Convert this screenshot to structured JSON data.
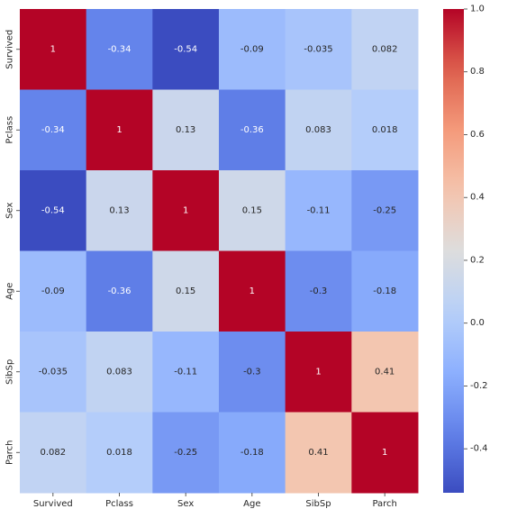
{
  "chart_data": {
    "type": "heatmap",
    "title": "",
    "xlabel": "",
    "ylabel": "",
    "x_labels": [
      "Survived",
      "Pclass",
      "Sex",
      "Age",
      "SibSp",
      "Parch"
    ],
    "y_labels": [
      "Survived",
      "Pclass",
      "Sex",
      "Age",
      "SibSp",
      "Parch"
    ],
    "values": [
      [
        1,
        -0.34,
        -0.54,
        -0.09,
        -0.035,
        0.082
      ],
      [
        -0.34,
        1,
        0.13,
        -0.36,
        0.083,
        0.018
      ],
      [
        -0.54,
        0.13,
        1,
        0.15,
        -0.11,
        -0.25
      ],
      [
        -0.09,
        -0.36,
        0.15,
        1,
        -0.3,
        -0.18
      ],
      [
        -0.035,
        0.083,
        -0.11,
        -0.3,
        1,
        0.41
      ],
      [
        0.082,
        0.018,
        -0.25,
        -0.18,
        0.41,
        1
      ]
    ],
    "annotations": [
      [
        "1",
        "-0.34",
        "-0.54",
        "-0.09",
        "-0.035",
        "0.082"
      ],
      [
        "-0.34",
        "1",
        "0.13",
        "-0.36",
        "0.083",
        "0.018"
      ],
      [
        "-0.54",
        "0.13",
        "1",
        "0.15",
        "-0.11",
        "-0.25"
      ],
      [
        "-0.09",
        "-0.36",
        "0.15",
        "1",
        "-0.3",
        "-0.18"
      ],
      [
        "-0.035",
        "0.083",
        "-0.11",
        "-0.3",
        "1",
        "0.41"
      ],
      [
        "0.082",
        "0.018",
        "-0.25",
        "-0.18",
        "0.41",
        "1"
      ]
    ],
    "colormap": "coolwarm",
    "vmin": -0.54,
    "vmax": 1.0,
    "colorbar_ticks": [
      -0.4,
      -0.2,
      0.0,
      0.2,
      0.4,
      0.6,
      0.8,
      1.0
    ],
    "colorbar_tick_labels": [
      "-0.4",
      "-0.2",
      "0.0",
      "0.2",
      "0.4",
      "0.6",
      "0.8",
      "1.0"
    ],
    "grid": false,
    "legend": "colorbar-right"
  }
}
